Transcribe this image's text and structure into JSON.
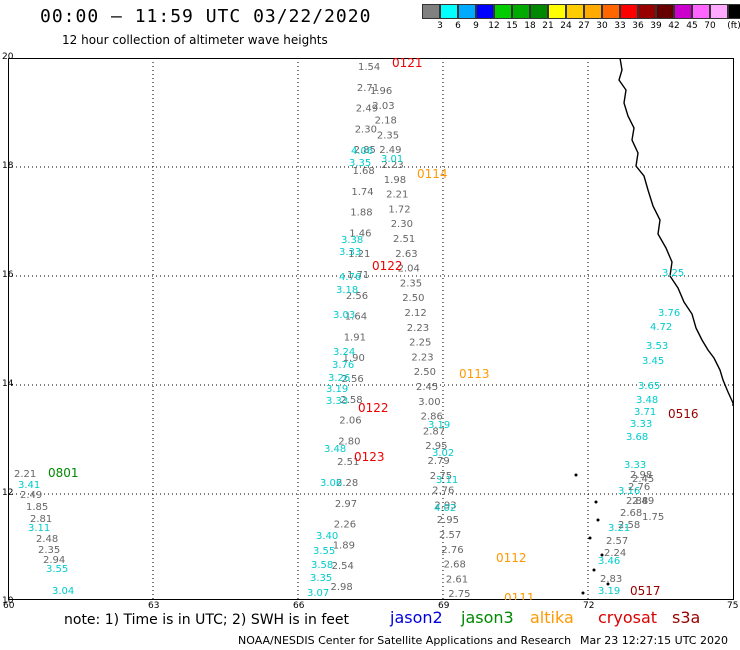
{
  "header": {
    "title": "00:00 — 11:59 UTC 03/22/2020",
    "subtitle": "12 hour collection of altimeter wave heights"
  },
  "legend": {
    "swatches": [
      "#808080",
      "#00ffff",
      "#00aaff",
      "#0000ff",
      "#00cc00",
      "#00aa00",
      "#008800",
      "#ffff00",
      "#ffcc00",
      "#ffaa00",
      "#ff6600",
      "#ff0000",
      "#990000",
      "#660000",
      "#cc00cc",
      "#ff66ff",
      "#ffaaff",
      "#000000"
    ],
    "labels": [
      "3",
      "6",
      "9",
      "12",
      "15",
      "18",
      "21",
      "24",
      "27",
      "30",
      "33",
      "36",
      "39",
      "42",
      "45",
      "70",
      "(ft)"
    ]
  },
  "axes": {
    "x_ticks": [
      "60",
      "63",
      "66",
      "69",
      "72",
      "75"
    ],
    "y_ticks": [
      "20",
      "18",
      "16",
      "14",
      "12",
      "10"
    ]
  },
  "footer": {
    "note": "note:  1) Time is in UTC;  2) SWH is in feet",
    "satellites": [
      {
        "name": "jason2",
        "color": "#0000dd"
      },
      {
        "name": "jason3",
        "color": "#008800"
      },
      {
        "name": "altika",
        "color": "#ff9900"
      },
      {
        "name": "cryosat",
        "color": "#dd0000"
      },
      {
        "name": "s3a",
        "color": "#990000"
      }
    ],
    "credit": "NOAA/NESDIS Center for Satellite Applications and Research",
    "timestamp": "Mar 23 12:27:15 UTC 2020"
  },
  "tracks": [
    {
      "color": "#666666",
      "values": [
        "1.54",
        "2.71",
        "2.49",
        "2.30",
        "2.85",
        "1.68",
        "1.74",
        "1.88",
        "1.46",
        "1.21",
        "1.71",
        "2.56",
        "1.64",
        "1.91",
        "1.90",
        "2.56",
        "2.58",
        "2.06",
        "2.80",
        "2.51",
        "2.28",
        "2.97",
        "2.26",
        "1.89",
        "2.54",
        "2.98"
      ]
    },
    {
      "color": "#666666",
      "values": [
        "1.96",
        "2.03",
        "2.18",
        "2.35",
        "2.49",
        "2.23",
        "1.98",
        "2.21",
        "1.72",
        "2.30",
        "2.51",
        "2.63",
        "2.04",
        "2.35",
        "2.50",
        "2.12",
        "2.23",
        "2.25",
        "2.23",
        "2.50",
        "2.45",
        "3.00",
        "2.86",
        "2.87",
        "2.95",
        "2.79",
        "2.75",
        "2.76",
        "2.93",
        "2.95",
        "2.57",
        "2.76",
        "2.68",
        "2.61",
        "2.75"
      ]
    },
    {
      "color": "#00cccc",
      "values": [
        "4.06",
        "3.35",
        "3.01",
        "3.38",
        "3.33",
        "4.76",
        "3.18",
        "3.03",
        "3.24",
        "3.76",
        "3.26",
        "3.19",
        "3.33",
        "3.48",
        "3.06",
        "3.40",
        "3.55",
        "3.58",
        "3.35",
        "3.07",
        "3.19",
        "3.02",
        "3.11",
        "4.02",
        "3.25",
        "3.76",
        "4.72",
        "3.53",
        "3.45",
        "3.65",
        "3.48",
        "3.71",
        "3.33",
        "3.68",
        "3.33",
        "3.16",
        "3.21",
        "3.46",
        "3.19",
        "3.41",
        "3.11",
        "3.55",
        "3.04"
      ]
    },
    {
      "color": "#666666",
      "values": [
        "2.21",
        "2.49",
        "1.85",
        "2.81",
        "2.48",
        "2.35",
        "2.94",
        "2.58",
        "2.68",
        "2.88",
        "2.76",
        "2.98",
        "2.45",
        "2.49",
        "1.75",
        "2.57",
        "2.24",
        "2.83"
      ]
    }
  ],
  "pass_labels": [
    {
      "text": "0121",
      "color": "#ee0000"
    },
    {
      "text": "0114",
      "color": "#ff9900"
    },
    {
      "text": "0122",
      "color": "#ee0000"
    },
    {
      "text": "0113",
      "color": "#ff9900"
    },
    {
      "text": "0122",
      "color": "#ee0000"
    },
    {
      "text": "0123",
      "color": "#ee0000"
    },
    {
      "text": "0516",
      "color": "#990000"
    },
    {
      "text": "0801",
      "color": "#008800"
    },
    {
      "text": "0112",
      "color": "#ff9900"
    },
    {
      "text": "0111",
      "color": "#ff9900"
    },
    {
      "text": "0517",
      "color": "#990000"
    }
  ]
}
